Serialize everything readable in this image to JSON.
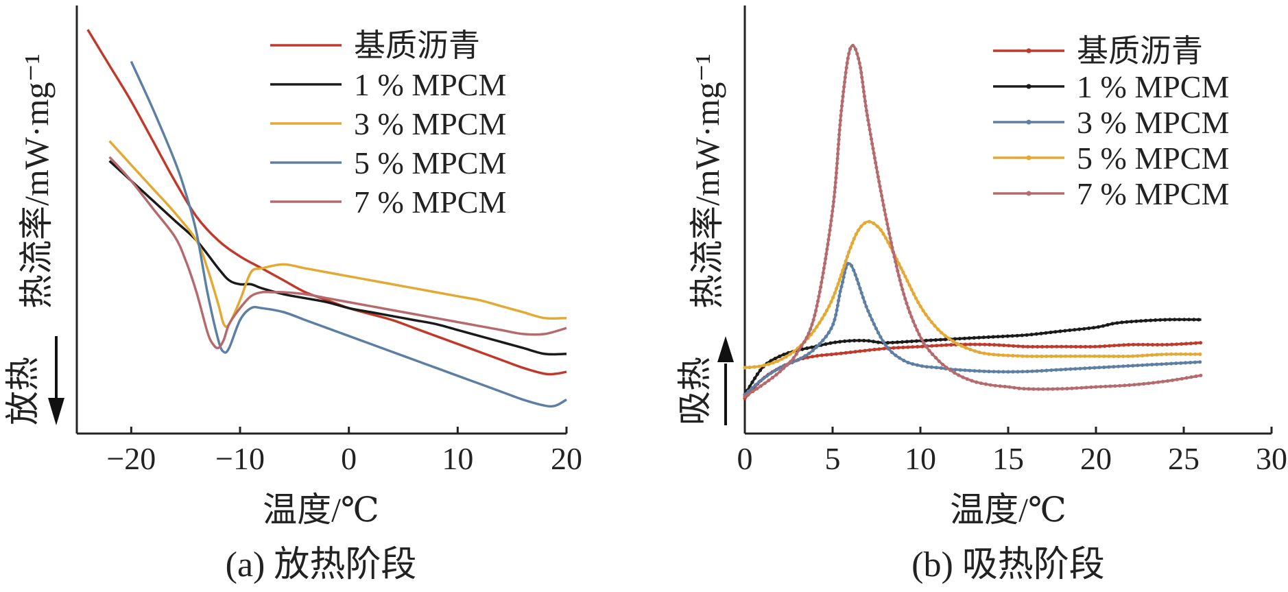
{
  "chart_data": [
    {
      "type": "line",
      "caption": "(a) 放热阶段",
      "xlabel": "温度/℃",
      "ylabel": "热流率/mW·mg⁻¹",
      "direction_label": "放热",
      "direction_arrow": "down",
      "xlim": [
        -25,
        20
      ],
      "xticks": [
        "−20",
        "−10",
        "0",
        "10",
        "20"
      ],
      "xtick_values": [
        -20,
        -10,
        0,
        10,
        20
      ],
      "ylim": [
        0,
        10
      ],
      "legend_position": "top-right",
      "series": [
        {
          "name": "基质沥青",
          "color": "#c0392b",
          "x": [
            -24,
            -22,
            -20,
            -18,
            -16,
            -14,
            -12,
            -10,
            -8,
            -6,
            -4,
            -2,
            0,
            2,
            4,
            6,
            8,
            10,
            12,
            14,
            16,
            18,
            19,
            20
          ],
          "y": [
            9.6,
            8.7,
            7.8,
            6.8,
            5.8,
            4.9,
            4.3,
            3.9,
            3.6,
            3.3,
            3.0,
            2.8,
            2.6,
            2.45,
            2.3,
            2.1,
            1.9,
            1.7,
            1.5,
            1.3,
            1.1,
            0.95,
            0.95,
            1.0
          ]
        },
        {
          "name": "1 % MPCM",
          "color": "#1a1a1a",
          "x": [
            -22,
            -20,
            -18,
            -16,
            -14,
            -12,
            -11,
            -10,
            -9,
            -8,
            -6,
            -4,
            -2,
            0,
            2,
            4,
            6,
            8,
            10,
            12,
            14,
            16,
            18,
            20
          ],
          "y": [
            6.3,
            5.8,
            5.3,
            4.8,
            4.3,
            3.6,
            3.3,
            3.2,
            3.2,
            3.1,
            2.95,
            2.85,
            2.75,
            2.6,
            2.5,
            2.4,
            2.3,
            2.2,
            2.05,
            1.9,
            1.75,
            1.6,
            1.45,
            1.45
          ]
        },
        {
          "name": "3 % MPCM",
          "color": "#e3a933",
          "x": [
            -22,
            -20,
            -18,
            -16,
            -14,
            -13,
            -12,
            -11.5,
            -11,
            -10,
            -9,
            -8,
            -6,
            -4,
            -2,
            0,
            2,
            4,
            6,
            8,
            10,
            12,
            14,
            16,
            18,
            20
          ],
          "y": [
            6.8,
            6.2,
            5.6,
            5.0,
            4.3,
            3.6,
            2.7,
            2.2,
            2.2,
            2.8,
            3.5,
            3.6,
            3.7,
            3.6,
            3.5,
            3.4,
            3.3,
            3.2,
            3.1,
            3.0,
            2.9,
            2.8,
            2.65,
            2.5,
            2.35,
            2.35
          ]
        },
        {
          "name": "5 % MPCM",
          "color": "#5d7fa3",
          "x": [
            -20,
            -18,
            -16,
            -15,
            -14,
            -13,
            -12,
            -11.5,
            -11,
            -10,
            -9,
            -8,
            -6,
            -4,
            -2,
            0,
            2,
            4,
            6,
            8,
            10,
            12,
            14,
            16,
            18,
            19,
            20
          ],
          "y": [
            8.8,
            7.6,
            6.3,
            5.5,
            4.5,
            3.0,
            1.8,
            1.5,
            1.6,
            2.3,
            2.6,
            2.6,
            2.5,
            2.3,
            2.1,
            1.9,
            1.7,
            1.5,
            1.3,
            1.1,
            0.9,
            0.7,
            0.5,
            0.3,
            0.15,
            0.15,
            0.3
          ]
        },
        {
          "name": "7 % MPCM",
          "color": "#b56a6e",
          "x": [
            -22,
            -20,
            -18,
            -16,
            -15,
            -14,
            -13,
            -12.5,
            -12,
            -11.5,
            -11,
            -10,
            -9,
            -8,
            -7,
            -6,
            -4,
            -2,
            0,
            2,
            4,
            6,
            8,
            10,
            12,
            14,
            16,
            18,
            20
          ],
          "y": [
            6.4,
            5.8,
            5.1,
            4.4,
            3.8,
            3.0,
            2.0,
            1.7,
            1.6,
            1.8,
            2.2,
            2.6,
            2.9,
            3.0,
            3.0,
            3.0,
            2.95,
            2.85,
            2.75,
            2.65,
            2.55,
            2.45,
            2.35,
            2.25,
            2.15,
            2.05,
            1.95,
            1.95,
            2.1
          ]
        }
      ]
    },
    {
      "type": "line",
      "caption": "(b) 吸热阶段",
      "xlabel": "温度/℃",
      "ylabel": "热流率/mW·mg⁻¹",
      "direction_label": "吸热",
      "direction_arrow": "up",
      "xlim": [
        0,
        30
      ],
      "xticks": [
        "0",
        "5",
        "10",
        "15",
        "20",
        "25",
        "30"
      ],
      "xtick_values": [
        0,
        5,
        10,
        15,
        20,
        25,
        30
      ],
      "ylim": [
        0,
        10
      ],
      "legend_position": "top-right",
      "markers": true,
      "series": [
        {
          "name": "基质沥青",
          "color": "#c0392b",
          "x": [
            0,
            1,
            2,
            3,
            4,
            5,
            6,
            8,
            10,
            12,
            14,
            16,
            18,
            20,
            22,
            24,
            26
          ],
          "y": [
            0.7,
            1.2,
            1.5,
            1.7,
            1.8,
            1.85,
            1.9,
            2.0,
            2.05,
            2.1,
            2.1,
            2.05,
            2.05,
            2.05,
            2.1,
            2.1,
            2.15
          ]
        },
        {
          "name": "1 % MPCM",
          "color": "#1a1a1a",
          "x": [
            0,
            1,
            2,
            3,
            4,
            5,
            6,
            7,
            8,
            10,
            12,
            14,
            16,
            18,
            20,
            21,
            22,
            24,
            26
          ],
          "y": [
            0.8,
            1.5,
            1.8,
            1.95,
            2.05,
            2.15,
            2.2,
            2.2,
            2.15,
            2.2,
            2.25,
            2.3,
            2.35,
            2.45,
            2.55,
            2.65,
            2.7,
            2.75,
            2.75
          ]
        },
        {
          "name": "3 % MPCM",
          "color": "#5d7fa3",
          "x": [
            0,
            1,
            2,
            3,
            4,
            5,
            5.5,
            6,
            7,
            8,
            9,
            10,
            11,
            12,
            14,
            16,
            18,
            20,
            22,
            24,
            26
          ],
          "y": [
            0.8,
            1.2,
            1.5,
            1.7,
            2.0,
            2.6,
            3.6,
            4.2,
            3.0,
            2.1,
            1.7,
            1.55,
            1.5,
            1.45,
            1.4,
            1.4,
            1.45,
            1.5,
            1.55,
            1.6,
            1.65
          ]
        },
        {
          "name": "5 % MPCM",
          "color": "#e3a933",
          "x": [
            0,
            1,
            2,
            3,
            4,
            5,
            6,
            6.5,
            7,
            7.5,
            8,
            9,
            10,
            11,
            12,
            13,
            14,
            16,
            18,
            20,
            22,
            24,
            26
          ],
          "y": [
            1.5,
            1.55,
            1.7,
            2.0,
            2.5,
            3.3,
            4.6,
            5.1,
            5.3,
            5.2,
            4.9,
            4.0,
            3.1,
            2.5,
            2.15,
            1.95,
            1.85,
            1.8,
            1.8,
            1.8,
            1.8,
            1.85,
            1.85
          ]
        },
        {
          "name": "7 % MPCM",
          "color": "#b56a6e",
          "x": [
            0,
            1,
            2,
            3,
            4,
            5,
            5.5,
            6,
            6.5,
            7,
            8,
            9,
            10,
            11,
            12,
            13,
            14,
            15,
            16,
            18,
            20,
            22,
            24,
            26
          ],
          "y": [
            0.75,
            1.05,
            1.4,
            1.9,
            2.9,
            5.6,
            8.2,
            9.8,
            9.5,
            8.0,
            5.5,
            3.5,
            2.3,
            1.7,
            1.35,
            1.15,
            1.05,
            1.0,
            0.95,
            0.95,
            1.0,
            1.05,
            1.15,
            1.3
          ]
        }
      ]
    }
  ]
}
